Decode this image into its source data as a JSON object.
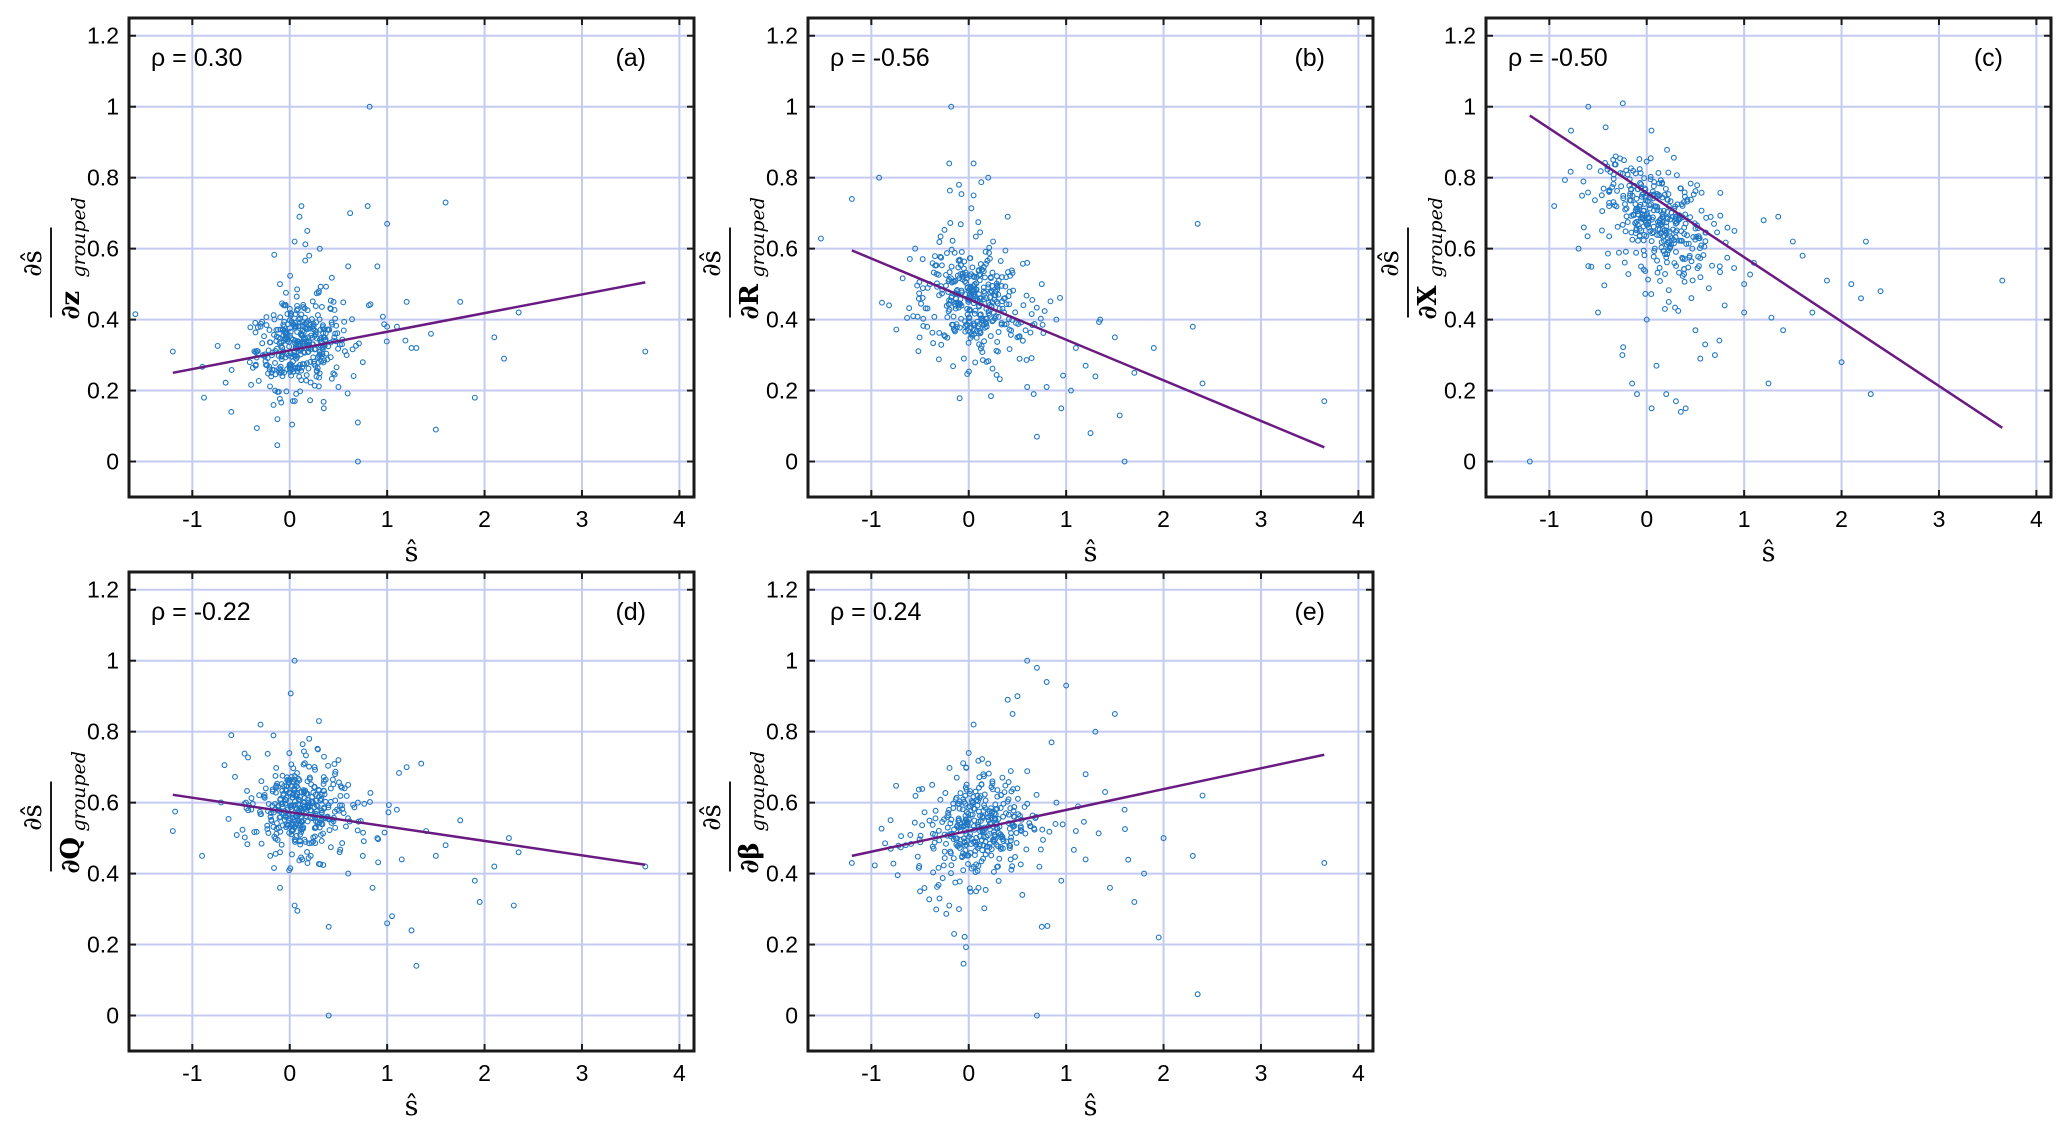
{
  "chart_data": [
    {
      "type": "scatter",
      "panel_label": "(a)",
      "rho_text": "ρ = 0.30",
      "xlabel": "ŝ",
      "ylabel": {
        "numerator": "∂ŝ",
        "denominator": "∂z",
        "subscript": "grouped"
      },
      "xlim": [
        -1.65,
        4.15
      ],
      "ylim": [
        -0.1,
        1.25
      ],
      "xticks": [
        "-1",
        "0",
        "1",
        "2",
        "3",
        "4"
      ],
      "yticks": [
        "0",
        "0.2",
        "0.4",
        "0.6",
        "0.8",
        "1",
        "1.2"
      ],
      "grid": true,
      "fit_line": {
        "x": [
          -1.2,
          3.65
        ],
        "y": [
          0.25,
          0.505
        ]
      },
      "cluster": {
        "center": [
          0.1,
          0.33
        ],
        "spread": [
          0.22,
          0.06
        ],
        "count": 380
      },
      "points": [
        [
          -1.2,
          0.31
        ],
        [
          -0.88,
          0.18
        ],
        [
          -0.6,
          0.14
        ],
        [
          -0.35,
          0.27
        ],
        [
          -0.3,
          0.38
        ],
        [
          -0.1,
          0.5
        ],
        [
          0.05,
          0.62
        ],
        [
          0.1,
          0.69
        ],
        [
          0.12,
          0.72
        ],
        [
          0.18,
          0.65
        ],
        [
          0.2,
          0.58
        ],
        [
          0.3,
          0.48
        ],
        [
          0.45,
          0.45
        ],
        [
          0.6,
          0.55
        ],
        [
          0.62,
          0.7
        ],
        [
          0.8,
          0.72
        ],
        [
          0.82,
          1.0
        ],
        [
          0.9,
          0.55
        ],
        [
          1.0,
          0.67
        ],
        [
          1.1,
          0.38
        ],
        [
          1.2,
          0.45
        ],
        [
          1.3,
          0.32
        ],
        [
          1.45,
          0.36
        ],
        [
          1.5,
          0.09
        ],
        [
          1.6,
          0.73
        ],
        [
          1.75,
          0.45
        ],
        [
          1.9,
          0.18
        ],
        [
          2.1,
          0.35
        ],
        [
          2.2,
          0.29
        ],
        [
          2.35,
          0.42
        ],
        [
          3.65,
          0.31
        ],
        [
          0.7,
          0.0
        ],
        [
          0.5,
          0.21
        ],
        [
          0.35,
          0.15
        ],
        [
          -0.15,
          0.2
        ],
        [
          0.75,
          0.28
        ],
        [
          1.0,
          0.38
        ],
        [
          1.25,
          0.32
        ]
      ]
    },
    {
      "type": "scatter",
      "panel_label": "(b)",
      "rho_text": "ρ = -0.56",
      "xlabel": "ŝ",
      "ylabel": {
        "numerator": "∂ŝ",
        "denominator": "∂R",
        "subscript": "grouped"
      },
      "xlim": [
        -1.65,
        4.15
      ],
      "ylim": [
        -0.1,
        1.25
      ],
      "xticks": [
        "-1",
        "0",
        "1",
        "2",
        "3",
        "4"
      ],
      "yticks": [
        "0",
        "0.2",
        "0.4",
        "0.6",
        "0.8",
        "1",
        "1.2"
      ],
      "grid": true,
      "fit_line": {
        "x": [
          -1.2,
          3.65
        ],
        "y": [
          0.595,
          0.04
        ]
      },
      "cluster": {
        "center": [
          0.05,
          0.45
        ],
        "spread": [
          0.25,
          0.07
        ],
        "count": 380
      },
      "points": [
        [
          -1.2,
          0.74
        ],
        [
          -0.92,
          0.8
        ],
        [
          -0.55,
          0.6
        ],
        [
          -0.4,
          0.5
        ],
        [
          -0.2,
          0.84
        ],
        [
          -0.18,
          1.0
        ],
        [
          -0.1,
          0.78
        ],
        [
          0.05,
          0.84
        ],
        [
          0.05,
          0.75
        ],
        [
          0.2,
          0.8
        ],
        [
          0.25,
          0.62
        ],
        [
          0.4,
          0.69
        ],
        [
          0.6,
          0.56
        ],
        [
          0.75,
          0.5
        ],
        [
          0.9,
          0.4
        ],
        [
          1.05,
          0.2
        ],
        [
          1.1,
          0.32
        ],
        [
          1.2,
          0.27
        ],
        [
          1.3,
          0.24
        ],
        [
          1.35,
          0.4
        ],
        [
          1.5,
          0.35
        ],
        [
          1.55,
          0.13
        ],
        [
          1.6,
          0.0
        ],
        [
          1.7,
          0.25
        ],
        [
          1.9,
          0.32
        ],
        [
          2.3,
          0.38
        ],
        [
          2.35,
          0.67
        ],
        [
          2.4,
          0.22
        ],
        [
          3.65,
          0.17
        ],
        [
          0.7,
          0.07
        ],
        [
          0.8,
          0.21
        ],
        [
          0.95,
          0.15
        ],
        [
          1.25,
          0.08
        ],
        [
          0.3,
          0.31
        ],
        [
          -0.05,
          0.29
        ],
        [
          0.6,
          0.21
        ],
        [
          0.5,
          0.35
        ]
      ]
    },
    {
      "type": "scatter",
      "panel_label": "(c)",
      "rho_text": "ρ = -0.50",
      "xlabel": "ŝ",
      "ylabel": {
        "numerator": "∂ŝ",
        "denominator": "∂X",
        "subscript": "grouped"
      },
      "xlim": [
        -1.65,
        4.15
      ],
      "ylim": [
        -0.1,
        1.25
      ],
      "xticks": [
        "-1",
        "0",
        "1",
        "2",
        "3",
        "4"
      ],
      "yticks": [
        "0",
        "0.2",
        "0.4",
        "0.6",
        "0.8",
        "1",
        "1.2"
      ],
      "grid": true,
      "fit_line": {
        "x": [
          -1.2,
          3.65
        ],
        "y": [
          0.975,
          0.095
        ]
      },
      "cluster": {
        "center": [
          0.1,
          0.68
        ],
        "spread": [
          0.25,
          0.07
        ],
        "count": 380
      },
      "points": [
        [
          -1.2,
          0.0
        ],
        [
          -0.6,
          1.0
        ],
        [
          -0.95,
          0.72
        ],
        [
          -0.7,
          0.6
        ],
        [
          -0.5,
          0.42
        ],
        [
          -0.4,
          0.55
        ],
        [
          -0.25,
          0.3
        ],
        [
          -0.15,
          0.22
        ],
        [
          -0.1,
          0.19
        ],
        [
          0.0,
          0.4
        ],
        [
          0.05,
          0.15
        ],
        [
          0.1,
          0.27
        ],
        [
          0.2,
          0.19
        ],
        [
          0.3,
          0.17
        ],
        [
          0.35,
          0.14
        ],
        [
          0.4,
          0.15
        ],
        [
          0.5,
          0.37
        ],
        [
          0.55,
          0.29
        ],
        [
          0.6,
          0.33
        ],
        [
          0.7,
          0.3
        ],
        [
          0.9,
          0.65
        ],
        [
          1.0,
          0.5
        ],
        [
          1.1,
          0.56
        ],
        [
          1.2,
          0.68
        ],
        [
          1.35,
          0.69
        ],
        [
          1.5,
          0.62
        ],
        [
          1.6,
          0.58
        ],
        [
          1.7,
          0.42
        ],
        [
          1.85,
          0.51
        ],
        [
          2.0,
          0.28
        ],
        [
          2.1,
          0.5
        ],
        [
          2.2,
          0.46
        ],
        [
          2.25,
          0.62
        ],
        [
          2.3,
          0.19
        ],
        [
          2.4,
          0.48
        ],
        [
          3.65,
          0.51
        ],
        [
          0.75,
          0.55
        ],
        [
          1.0,
          0.42
        ],
        [
          1.4,
          0.37
        ],
        [
          1.25,
          0.22
        ],
        [
          0.8,
          0.44
        ]
      ]
    },
    {
      "type": "scatter",
      "panel_label": "(d)",
      "rho_text": "ρ = -0.22",
      "xlabel": "ŝ",
      "ylabel": {
        "numerator": "∂ŝ",
        "denominator": "∂Q",
        "subscript": "grouped"
      },
      "xlim": [
        -1.65,
        4.15
      ],
      "ylim": [
        -0.1,
        1.25
      ],
      "xticks": [
        "-1",
        "0",
        "1",
        "2",
        "3",
        "4"
      ],
      "yticks": [
        "0",
        "0.2",
        "0.4",
        "0.6",
        "0.8",
        "1",
        "1.2"
      ],
      "grid": true,
      "fit_line": {
        "x": [
          -1.2,
          3.65
        ],
        "y": [
          0.622,
          0.425
        ]
      },
      "cluster": {
        "center": [
          0.1,
          0.58
        ],
        "spread": [
          0.22,
          0.06
        ],
        "count": 380
      },
      "points": [
        [
          -1.2,
          0.52
        ],
        [
          -0.9,
          0.45
        ],
        [
          -0.6,
          0.79
        ],
        [
          -0.45,
          0.6
        ],
        [
          -0.3,
          0.82
        ],
        [
          -0.2,
          0.45
        ],
        [
          -0.1,
          0.36
        ],
        [
          0.05,
          1.0
        ],
        [
          0.05,
          0.31
        ],
        [
          0.2,
          0.78
        ],
        [
          0.3,
          0.83
        ],
        [
          0.4,
          0.25
        ],
        [
          0.4,
          0.0
        ],
        [
          0.5,
          0.72
        ],
        [
          0.6,
          0.65
        ],
        [
          0.7,
          0.6
        ],
        [
          0.75,
          0.45
        ],
        [
          0.9,
          0.5
        ],
        [
          1.0,
          0.26
        ],
        [
          1.05,
          0.28
        ],
        [
          1.1,
          0.58
        ],
        [
          1.2,
          0.7
        ],
        [
          1.25,
          0.24
        ],
        [
          1.3,
          0.14
        ],
        [
          1.35,
          0.71
        ],
        [
          1.4,
          0.52
        ],
        [
          1.5,
          0.45
        ],
        [
          1.6,
          0.48
        ],
        [
          1.75,
          0.55
        ],
        [
          1.9,
          0.38
        ],
        [
          1.95,
          0.32
        ],
        [
          2.1,
          0.42
        ],
        [
          2.25,
          0.5
        ],
        [
          2.3,
          0.31
        ],
        [
          2.35,
          0.46
        ],
        [
          3.65,
          0.42
        ],
        [
          0.85,
          0.36
        ],
        [
          0.6,
          0.4
        ],
        [
          1.15,
          0.44
        ]
      ]
    },
    {
      "type": "scatter",
      "panel_label": "(e)",
      "rho_text": "ρ = 0.24",
      "xlabel": "ŝ",
      "ylabel": {
        "numerator": "∂ŝ",
        "denominator": "∂β",
        "subscript": "grouped"
      },
      "xlim": [
        -1.65,
        4.15
      ],
      "ylim": [
        -0.1,
        1.25
      ],
      "xticks": [
        "-1",
        "0",
        "1",
        "2",
        "3",
        "4"
      ],
      "yticks": [
        "0",
        "0.2",
        "0.4",
        "0.6",
        "0.8",
        "1",
        "1.2"
      ],
      "grid": true,
      "fit_line": {
        "x": [
          -1.2,
          3.65
        ],
        "y": [
          0.45,
          0.735
        ]
      },
      "cluster": {
        "center": [
          0.1,
          0.53
        ],
        "spread": [
          0.25,
          0.07
        ],
        "count": 380
      },
      "points": [
        [
          -1.2,
          0.43
        ],
        [
          -0.8,
          0.47
        ],
        [
          -0.5,
          0.35
        ],
        [
          -0.3,
          0.33
        ],
        [
          -0.2,
          0.31
        ],
        [
          -0.15,
          0.23
        ],
        [
          -0.1,
          0.3
        ],
        [
          0.0,
          0.74
        ],
        [
          0.05,
          0.82
        ],
        [
          0.1,
          0.36
        ],
        [
          0.15,
          0.68
        ],
        [
          0.2,
          0.71
        ],
        [
          0.3,
          0.42
        ],
        [
          0.4,
          0.89
        ],
        [
          0.45,
          0.85
        ],
        [
          0.5,
          0.9
        ],
        [
          0.5,
          0.64
        ],
        [
          0.6,
          1.0
        ],
        [
          0.7,
          0.98
        ],
        [
          0.75,
          0.25
        ],
        [
          0.7,
          0.0
        ],
        [
          0.8,
          0.94
        ],
        [
          0.85,
          0.77
        ],
        [
          0.9,
          0.6
        ],
        [
          1.0,
          0.93
        ],
        [
          1.1,
          0.52
        ],
        [
          1.2,
          0.68
        ],
        [
          1.3,
          0.8
        ],
        [
          1.4,
          0.63
        ],
        [
          1.45,
          0.36
        ],
        [
          1.5,
          0.85
        ],
        [
          1.6,
          0.58
        ],
        [
          1.7,
          0.32
        ],
        [
          1.8,
          0.4
        ],
        [
          1.95,
          0.22
        ],
        [
          2.0,
          0.5
        ],
        [
          2.3,
          0.45
        ],
        [
          2.35,
          0.06
        ],
        [
          2.4,
          0.62
        ],
        [
          3.65,
          0.43
        ],
        [
          0.95,
          0.38
        ],
        [
          1.2,
          0.44
        ],
        [
          0.55,
          0.34
        ]
      ]
    }
  ]
}
